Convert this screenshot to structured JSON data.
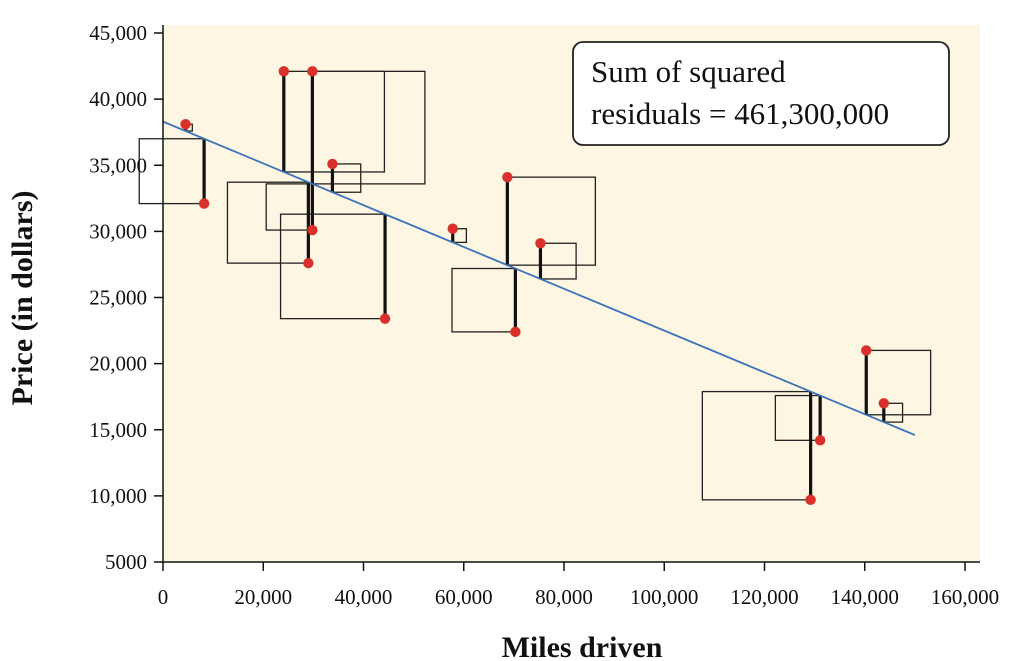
{
  "chart_data": {
    "type": "scatter",
    "xlabel": "Miles driven",
    "ylabel": "Price (in dollars)",
    "xlim": [
      0,
      160000
    ],
    "ylim": [
      5000,
      45000
    ],
    "x_ticks": [
      {
        "value": 0,
        "label": "0"
      },
      {
        "value": 20000,
        "label": "20,000"
      },
      {
        "value": 40000,
        "label": "40,000"
      },
      {
        "value": 60000,
        "label": "60,000"
      },
      {
        "value": 80000,
        "label": "80,000"
      },
      {
        "value": 100000,
        "label": "100,000"
      },
      {
        "value": 120000,
        "label": "120,000"
      },
      {
        "value": 140000,
        "label": "140,000"
      },
      {
        "value": 160000,
        "label": "160,000"
      }
    ],
    "y_ticks": [
      {
        "value": 5000,
        "label": "5000"
      },
      {
        "value": 10000,
        "label": "10,000"
      },
      {
        "value": 15000,
        "label": "15,000"
      },
      {
        "value": 20000,
        "label": "20,000"
      },
      {
        "value": 25000,
        "label": "25,000"
      },
      {
        "value": 30000,
        "label": "30,000"
      },
      {
        "value": 35000,
        "label": "35,000"
      },
      {
        "value": 40000,
        "label": "40,000"
      },
      {
        "value": 45000,
        "label": "45,000"
      }
    ],
    "regression_line": {
      "intercept": 38300,
      "slope": -0.158,
      "x_range": [
        0,
        150000
      ]
    },
    "points": [
      {
        "x": 4500,
        "y": 38100
      },
      {
        "x": 8200,
        "y": 32100
      },
      {
        "x": 24100,
        "y": 42100
      },
      {
        "x": 29800,
        "y": 42100
      },
      {
        "x": 29000,
        "y": 27600
      },
      {
        "x": 29800,
        "y": 30100
      },
      {
        "x": 33800,
        "y": 35100
      },
      {
        "x": 44300,
        "y": 23400
      },
      {
        "x": 57800,
        "y": 30200
      },
      {
        "x": 68700,
        "y": 34100
      },
      {
        "x": 70300,
        "y": 22400
      },
      {
        "x": 75300,
        "y": 29100
      },
      {
        "x": 129200,
        "y": 9700
      },
      {
        "x": 131100,
        "y": 14200
      },
      {
        "x": 140300,
        "y": 21000
      },
      {
        "x": 143800,
        "y": 17000
      }
    ],
    "annotation": {
      "line1": "Sum of squared",
      "line2": "residuals = 461,300,000"
    },
    "colors": {
      "background": "#fdf6e2",
      "point": "#d9302b",
      "line": "#3d72b8",
      "residual": "#111111",
      "square": "#222222"
    },
    "grid": false
  }
}
